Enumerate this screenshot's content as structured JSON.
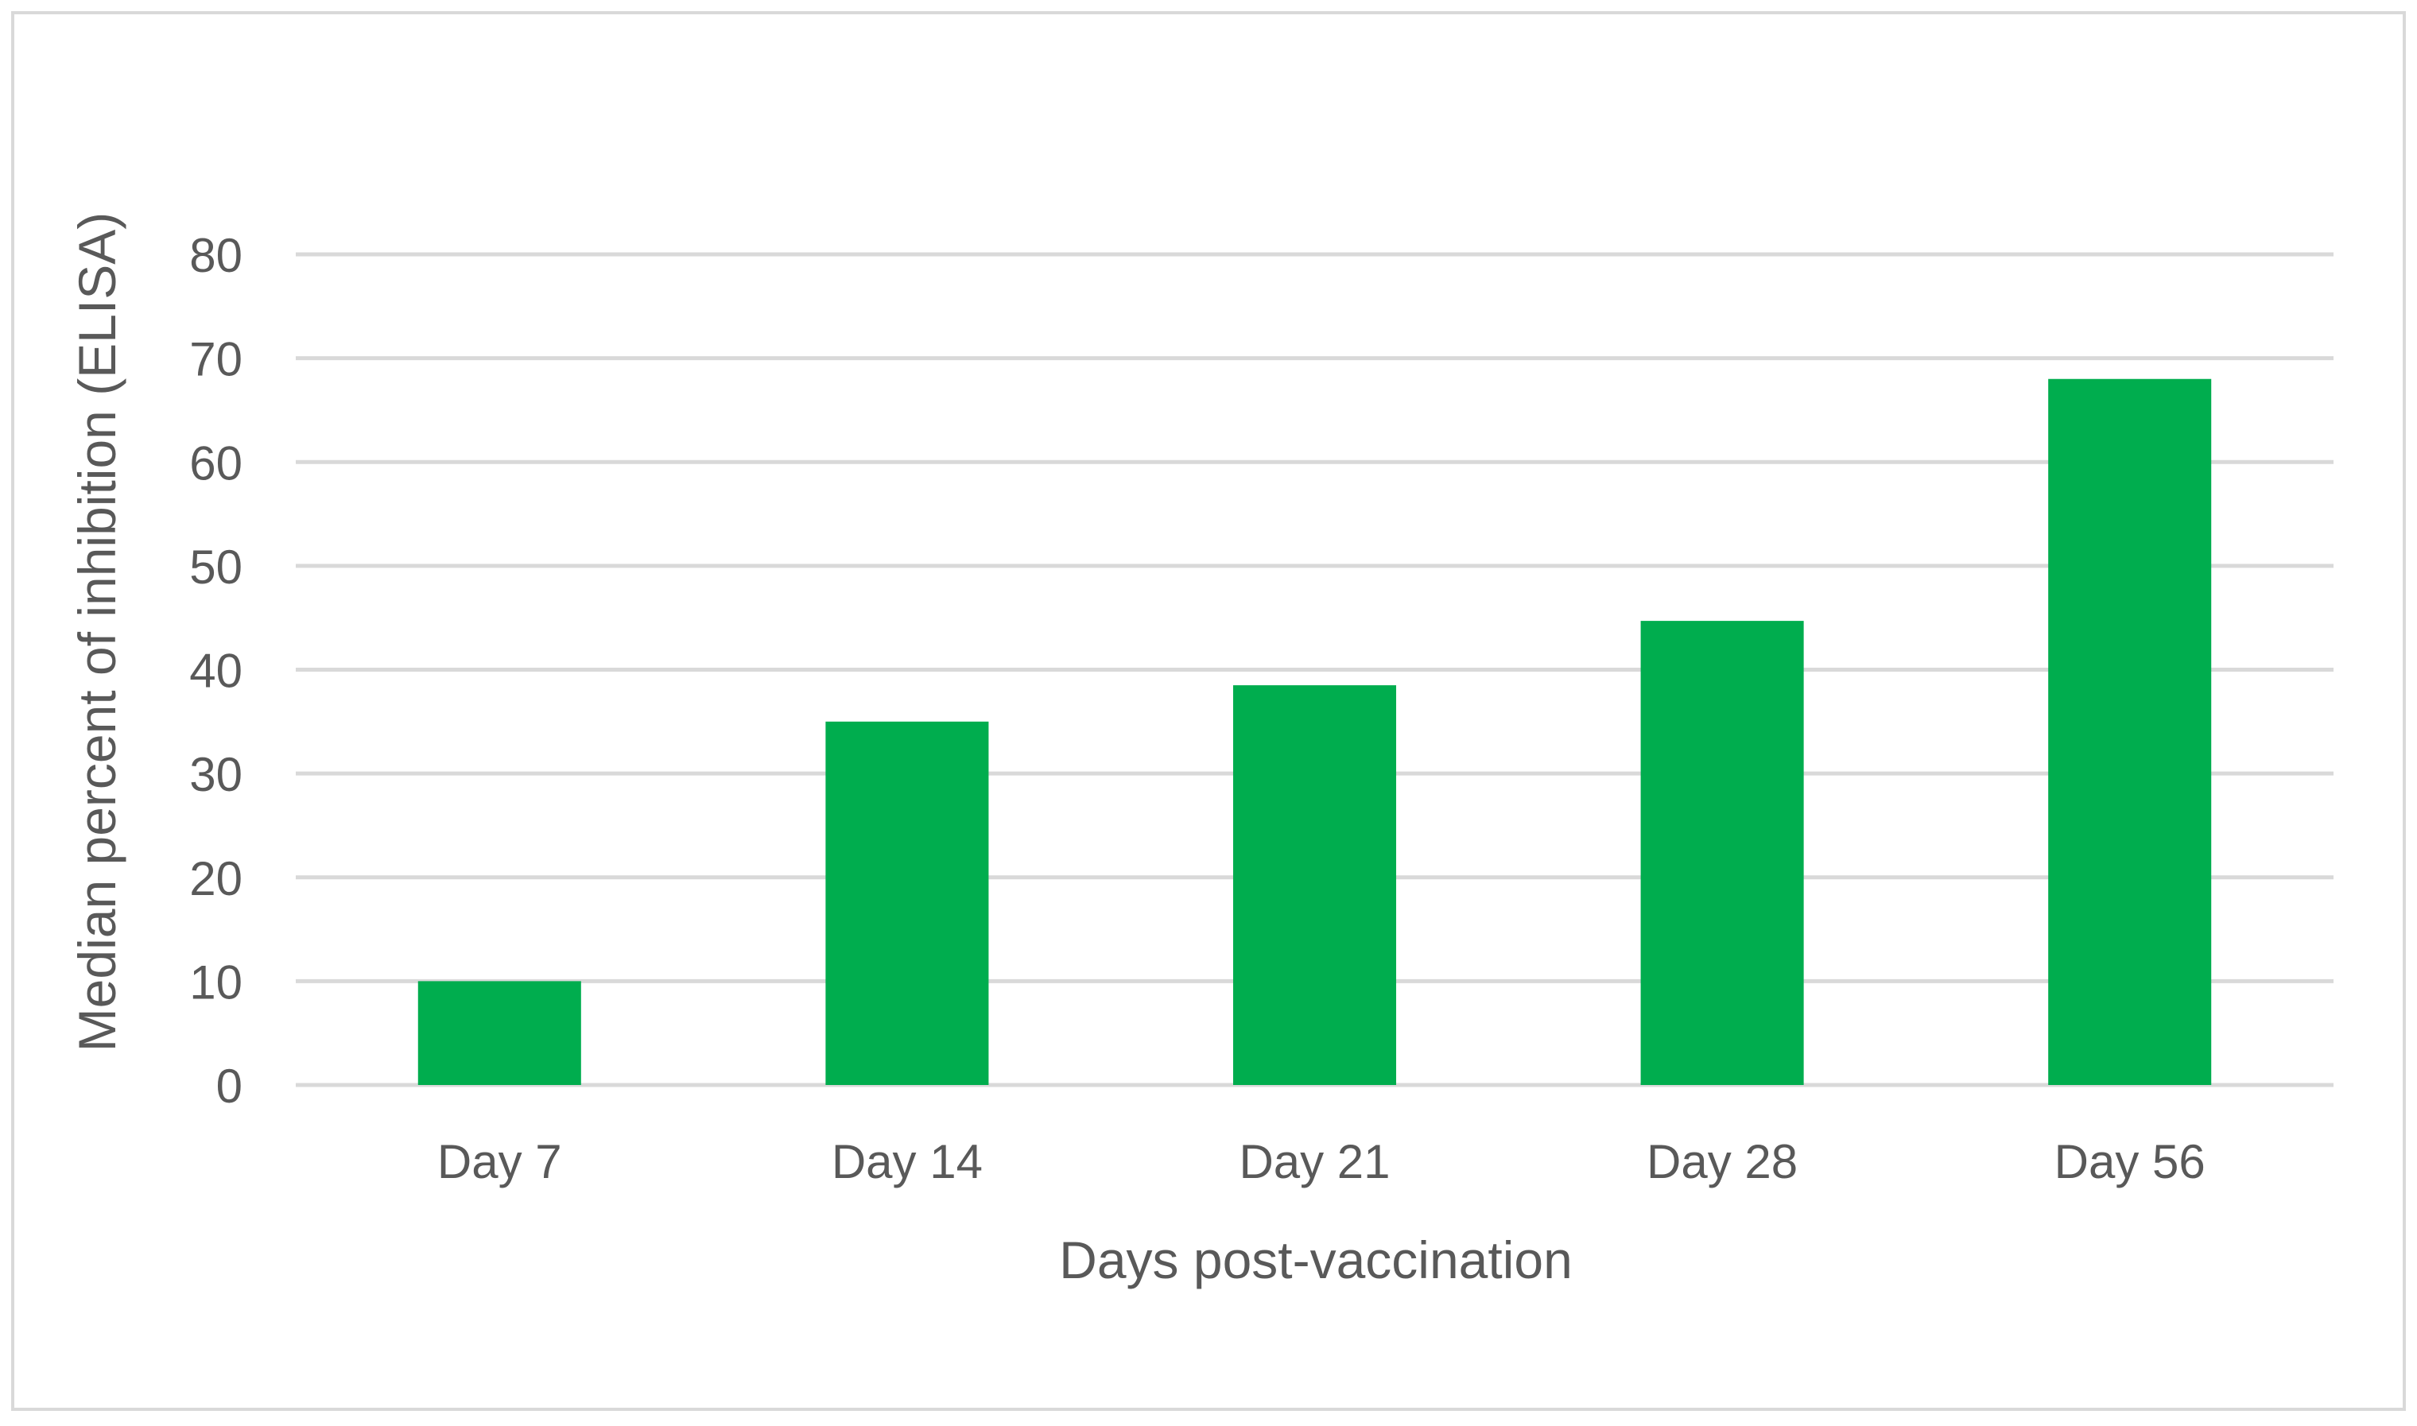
{
  "chart_data": {
    "type": "bar",
    "title": "",
    "xlabel": "Days post-vaccination",
    "ylabel": "Median percent of inhibition (ELISA)",
    "categories": [
      "Day 7",
      "Day 14",
      "Day 21",
      "Day 28",
      "Day 56"
    ],
    "values": [
      10,
      35,
      38.5,
      44.7,
      68
    ],
    "ylim": [
      0,
      80
    ],
    "yticks": [
      0,
      10,
      20,
      30,
      40,
      50,
      60,
      70,
      80
    ],
    "grid": true,
    "legend": "none",
    "bar_color": "#00AD4E"
  }
}
